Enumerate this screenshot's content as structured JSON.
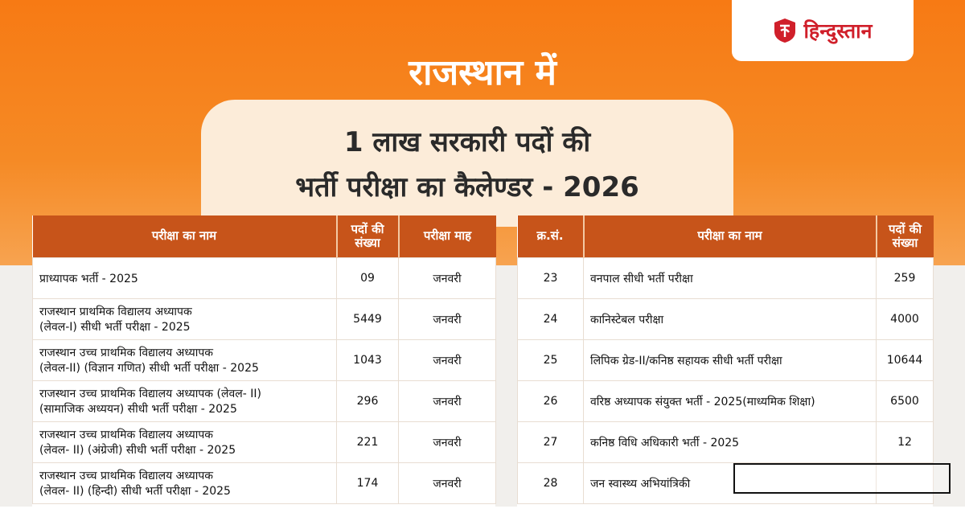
{
  "brand": {
    "name": "हिन्दुस्तान",
    "color": "#d01f2a",
    "emblem": "hindustan-emblem-icon"
  },
  "hero": {
    "title": "राजस्थान में",
    "banner_line1": "1 लाख सरकारी पदों की",
    "banner_line2": "भर्ती परीक्षा का कैलेण्डर - 2026"
  },
  "colors": {
    "header_bg": "#c7541a",
    "accent_orange": "#f77a14",
    "banner_bg": "#fcecd9"
  },
  "left_table": {
    "headers": [
      "परीक्षा का नाम",
      "पदों की संख्या",
      "परीक्षा माह"
    ],
    "rows": [
      {
        "name1": "प्राध्यापक भर्ती -  2025",
        "name2": "",
        "posts": "09",
        "month": "जनवरी"
      },
      {
        "name1": "राजस्थान प्राथमिक विद्यालय अध्यापक",
        "name2": "(लेवल-I) सीधी भर्ती परीक्षा - 2025",
        "posts": "5449",
        "month": "जनवरी"
      },
      {
        "name1": "राजस्थान उच्च प्राथमिक विद्यालय अध्यापक",
        "name2": "(लेवल-II) (विज्ञान गणित) सीधी भर्ती परीक्षा - 2025",
        "posts": "1043",
        "month": "जनवरी"
      },
      {
        "name1": "राजस्थान उच्च प्राथमिक विद्यालय अध्यापक (लेवल- II)",
        "name2": "(सामाजिक अध्ययन) सीधी भर्ती परीक्षा - 2025",
        "posts": "296",
        "month": "जनवरी"
      },
      {
        "name1": "राजस्थान उच्च प्राथमिक विद्यालय अध्यापक",
        "name2": "(लेवल- II) (अंग्रेजी) सीधी भर्ती परीक्षा - 2025",
        "posts": "221",
        "month": "जनवरी"
      },
      {
        "name1": "राजस्थान उच्च प्राथमिक विद्यालय अध्यापक",
        "name2": "(लेवल- II) (हिन्दी) सीधी भर्ती परीक्षा - 2025",
        "posts": "174",
        "month": "जनवरी"
      }
    ]
  },
  "right_table": {
    "headers": [
      "क्र.सं.",
      "परीक्षा का नाम",
      "पदों की संख्या"
    ],
    "rows": [
      {
        "sn": "23",
        "name": "वनपाल सीधी भर्ती परीक्षा",
        "posts": "259"
      },
      {
        "sn": "24",
        "name": "कानिस्टेबल परीक्षा",
        "posts": "4000"
      },
      {
        "sn": "25",
        "name": "लिपिक ग्रेड-II/कनिष्ठ सहायक सीधी भर्ती परीक्षा",
        "posts": "10644"
      },
      {
        "sn": "26",
        "name": "वरिष्ठ अध्यापक संयुक्त भर्ती - 2025(माध्यमिक शिक्षा)",
        "posts": "6500"
      },
      {
        "sn": "27",
        "name": "कनिष्ठ विधि अधिकारी भर्ती - 2025",
        "posts": "12"
      },
      {
        "sn": "28",
        "name": "जन स्वास्थ्य अभियांत्रिकी",
        "posts": ""
      }
    ]
  }
}
